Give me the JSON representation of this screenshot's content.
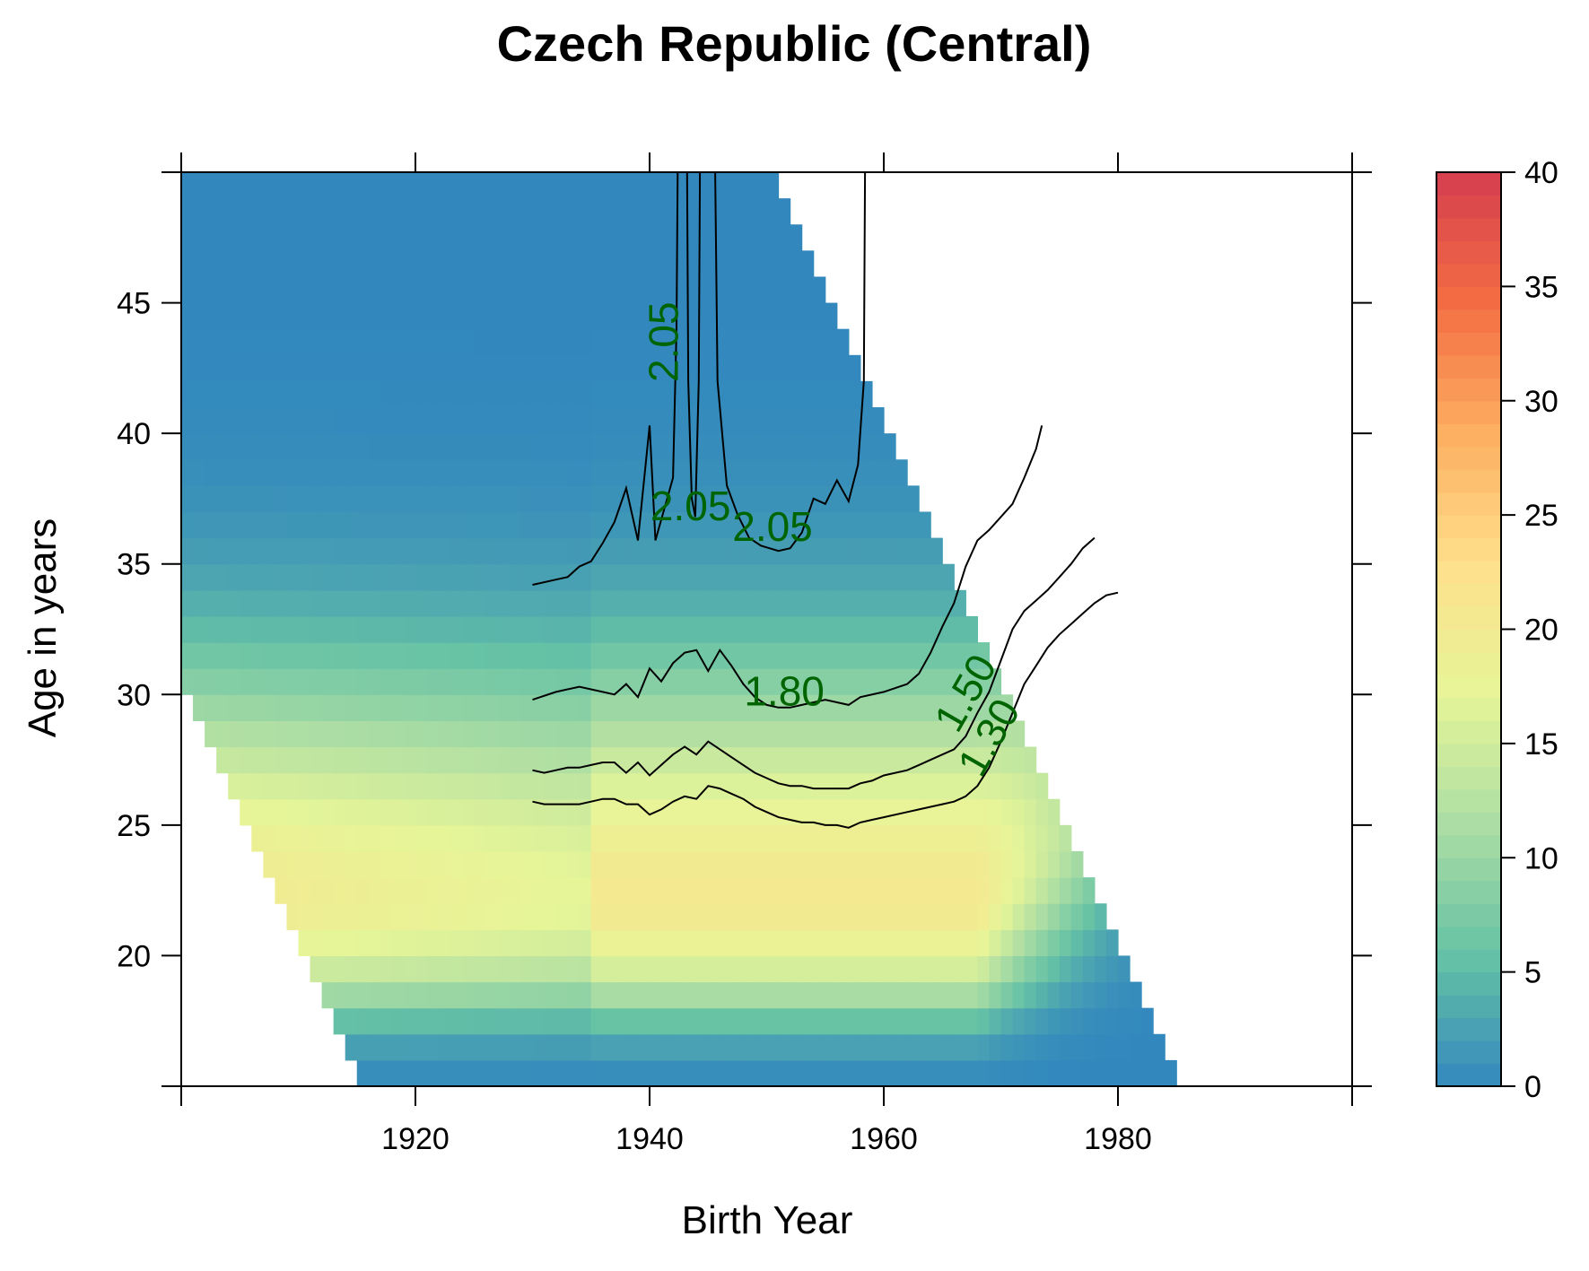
{
  "chart_data": {
    "type": "heatmap",
    "title": "Czech Republic (Central)",
    "xlabel": "Birth Year",
    "ylabel": "Age in years",
    "xlim": [
      1900,
      2000
    ],
    "ylim": [
      15,
      50
    ],
    "x_ticks": [
      1920,
      1940,
      1960,
      1980
    ],
    "y_ticks": [
      20,
      25,
      30,
      35,
      40,
      45
    ],
    "colorbar": {
      "range": [
        0,
        40
      ],
      "ticks": [
        0,
        5,
        10,
        15,
        20,
        25,
        30,
        35,
        40
      ],
      "colors": [
        "#3288bd",
        "#66c2a5",
        "#abdda4",
        "#e6f598",
        "#fee08b",
        "#fdae61",
        "#f46d43",
        "#d53e4f"
      ]
    },
    "observed_period": [
      1930,
      2000
    ],
    "contour_lines": [
      {
        "level": "2.05",
        "segments": [
          [
            [
              1930,
              34.2
            ],
            [
              1932,
              34.4
            ],
            [
              1933,
              34.5
            ],
            [
              1934,
              34.9
            ],
            [
              1935,
              35.1
            ],
            [
              1936,
              35.8
            ],
            [
              1937,
              36.6
            ],
            [
              1938,
              37.9
            ],
            [
              1939,
              35.9
            ],
            [
              1940,
              40.3
            ],
            [
              1940.5,
              35.9
            ],
            [
              1941.5,
              37.5
            ],
            [
              1942,
              38.3
            ],
            [
              1942.3,
              44
            ],
            [
              1942.4,
              50
            ]
          ],
          [
            [
              1943.2,
              50
            ],
            [
              1943.3,
              42
            ],
            [
              1943.6,
              37.5
            ],
            [
              1943.9,
              36.8
            ],
            [
              1944.2,
              42
            ],
            [
              1944.3,
              50
            ]
          ],
          [
            [
              1945.6,
              50
            ],
            [
              1945.8,
              42
            ],
            [
              1946.6,
              38
            ],
            [
              1947.5,
              36.9
            ],
            [
              1948.5,
              36.0
            ],
            [
              1949.5,
              35.7
            ],
            [
              1951,
              35.5
            ],
            [
              1952,
              35.6
            ],
            [
              1953,
              36.2
            ],
            [
              1954,
              37.5
            ],
            [
              1955,
              37.3
            ],
            [
              1956,
              38.2
            ],
            [
              1957,
              37.4
            ],
            [
              1957.8,
              38.8
            ],
            [
              1958.3,
              42
            ],
            [
              1958.4,
              50
            ]
          ]
        ],
        "labels": [
          {
            "text": "2.05",
            "x": 1941.5,
            "y": 43.5,
            "angle": -90
          },
          {
            "text": "2.05",
            "x": 1943.5,
            "y": 37.1,
            "angle": 0
          },
          {
            "text": "2.05",
            "x": 1950.5,
            "y": 36.3,
            "angle": 0
          }
        ]
      },
      {
        "level": "1.80",
        "segments": [
          [
            [
              1930,
              29.8
            ],
            [
              1932,
              30.1
            ],
            [
              1934,
              30.3
            ],
            [
              1936,
              30.1
            ],
            [
              1937,
              30.0
            ],
            [
              1937.5,
              30.2
            ],
            [
              1938,
              30.4
            ],
            [
              1939,
              29.9
            ],
            [
              1940,
              31.0
            ],
            [
              1941,
              30.5
            ],
            [
              1942,
              31.2
            ],
            [
              1943,
              31.6
            ],
            [
              1944,
              31.7
            ],
            [
              1945,
              30.9
            ],
            [
              1946,
              31.7
            ],
            [
              1947,
              31.1
            ],
            [
              1948,
              30.4
            ],
            [
              1949,
              29.9
            ],
            [
              1950,
              29.6
            ],
            [
              1951,
              29.5
            ],
            [
              1952,
              29.5
            ],
            [
              1953,
              29.6
            ],
            [
              1955,
              29.8
            ],
            [
              1956,
              29.7
            ],
            [
              1957,
              29.6
            ],
            [
              1958,
              29.9
            ],
            [
              1960,
              30.1
            ],
            [
              1962,
              30.4
            ],
            [
              1963,
              30.8
            ],
            [
              1964,
              31.6
            ],
            [
              1965,
              32.6
            ],
            [
              1966,
              33.5
            ],
            [
              1967,
              34.9
            ],
            [
              1968,
              35.9
            ],
            [
              1969,
              36.3
            ],
            [
              1970,
              36.8
            ],
            [
              1971,
              37.3
            ],
            [
              1972,
              38.3
            ],
            [
              1973,
              39.4
            ],
            [
              1973.5,
              40.3
            ]
          ]
        ],
        "labels": [
          {
            "text": "1.80",
            "x": 1951.5,
            "y": 30.0,
            "angle": 0
          }
        ]
      },
      {
        "level": "1.50",
        "segments": [
          [
            [
              1930,
              27.1
            ],
            [
              1931,
              27.0
            ],
            [
              1932,
              27.1
            ],
            [
              1933,
              27.2
            ],
            [
              1934,
              27.2
            ],
            [
              1935,
              27.3
            ],
            [
              1936,
              27.4
            ],
            [
              1937,
              27.4
            ],
            [
              1938,
              27.0
            ],
            [
              1939,
              27.4
            ],
            [
              1940,
              26.9
            ],
            [
              1941,
              27.3
            ],
            [
              1942,
              27.7
            ],
            [
              1943,
              28.0
            ],
            [
              1944,
              27.7
            ],
            [
              1945,
              28.2
            ],
            [
              1946,
              27.9
            ],
            [
              1947,
              27.6
            ],
            [
              1948,
              27.3
            ],
            [
              1949,
              27.0
            ],
            [
              1950,
              26.8
            ],
            [
              1951,
              26.6
            ],
            [
              1952,
              26.5
            ],
            [
              1953,
              26.5
            ],
            [
              1954,
              26.4
            ],
            [
              1955,
              26.4
            ],
            [
              1956,
              26.4
            ],
            [
              1957,
              26.4
            ],
            [
              1958,
              26.6
            ],
            [
              1959,
              26.7
            ],
            [
              1960,
              26.9
            ],
            [
              1962,
              27.1
            ],
            [
              1963,
              27.3
            ],
            [
              1964,
              27.5
            ],
            [
              1965,
              27.7
            ],
            [
              1966,
              27.9
            ],
            [
              1967,
              28.4
            ],
            [
              1968,
              29.3
            ],
            [
              1969,
              30.1
            ],
            [
              1970,
              31.3
            ],
            [
              1971,
              32.5
            ],
            [
              1972,
              33.2
            ],
            [
              1973,
              33.6
            ],
            [
              1974,
              34.0
            ],
            [
              1975,
              34.5
            ],
            [
              1976,
              35.0
            ],
            [
              1977,
              35.6
            ],
            [
              1978,
              36.0
            ]
          ]
        ],
        "labels": [
          {
            "text": "1.50",
            "x": 1967.2,
            "y": 30.0,
            "angle": -60
          }
        ]
      },
      {
        "level": "1.30",
        "segments": [
          [
            [
              1930,
              25.9
            ],
            [
              1931,
              25.8
            ],
            [
              1932,
              25.8
            ],
            [
              1933,
              25.8
            ],
            [
              1934,
              25.8
            ],
            [
              1935,
              25.9
            ],
            [
              1936,
              26.0
            ],
            [
              1937,
              26.0
            ],
            [
              1938,
              25.8
            ],
            [
              1939,
              25.8
            ],
            [
              1940,
              25.4
            ],
            [
              1941,
              25.6
            ],
            [
              1942,
              25.9
            ],
            [
              1943,
              26.1
            ],
            [
              1944,
              26.0
            ],
            [
              1945,
              26.5
            ],
            [
              1946,
              26.4
            ],
            [
              1947,
              26.2
            ],
            [
              1948,
              26.0
            ],
            [
              1949,
              25.7
            ],
            [
              1950,
              25.5
            ],
            [
              1951,
              25.3
            ],
            [
              1952,
              25.2
            ],
            [
              1953,
              25.1
            ],
            [
              1954,
              25.1
            ],
            [
              1955,
              25.0
            ],
            [
              1956,
              25.0
            ],
            [
              1957,
              24.9
            ],
            [
              1958,
              25.1
            ],
            [
              1959,
              25.2
            ],
            [
              1960,
              25.3
            ],
            [
              1962,
              25.5
            ],
            [
              1963,
              25.6
            ],
            [
              1964,
              25.7
            ],
            [
              1965,
              25.8
            ],
            [
              1966,
              25.9
            ],
            [
              1967,
              26.1
            ],
            [
              1968,
              26.5
            ],
            [
              1969,
              27.2
            ],
            [
              1970,
              28.2
            ],
            [
              1971,
              29.3
            ],
            [
              1972,
              30.4
            ],
            [
              1973,
              31.1
            ],
            [
              1974,
              31.8
            ],
            [
              1975,
              32.3
            ],
            [
              1976,
              32.7
            ],
            [
              1977,
              33.1
            ],
            [
              1978,
              33.5
            ],
            [
              1979,
              33.8
            ],
            [
              1980,
              33.9
            ]
          ]
        ],
        "labels": [
          {
            "text": "1.30",
            "x": 1969.2,
            "y": 28.3,
            "angle": -60
          }
        ]
      }
    ]
  }
}
